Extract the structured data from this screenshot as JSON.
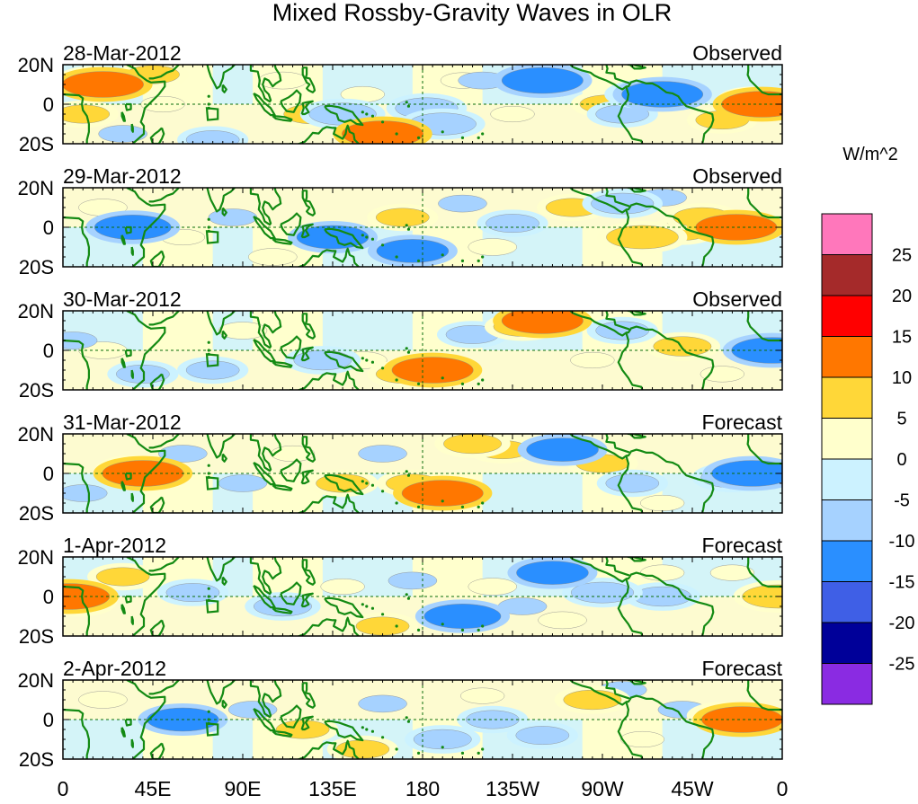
{
  "chart_data": {
    "type": "heatmap",
    "title": "Mixed Rossby-Gravity Waves in OLR",
    "units_label": "W/m^2",
    "x_ticks": [
      "0",
      "45E",
      "90E",
      "135E",
      "180",
      "135W",
      "90W",
      "45W",
      "0"
    ],
    "x_tick_lons": [
      0,
      45,
      90,
      135,
      180,
      225,
      270,
      315,
      360
    ],
    "y_ticks": [
      "20N",
      "0",
      "20S"
    ],
    "y_tick_lats": [
      20,
      0,
      -20
    ],
    "xlim": [
      0,
      360
    ],
    "ylim": [
      -20,
      20
    ],
    "colorbar": {
      "labels": [
        "25",
        "20",
        "15",
        "10",
        "5",
        "0",
        "-5",
        "-10",
        "-15",
        "-20",
        "-25"
      ],
      "levels": [
        25,
        20,
        15,
        10,
        5,
        0,
        -5,
        -10,
        -15,
        -20,
        -25
      ],
      "colors": [
        "#ff77bb",
        "#a52a2a",
        "#ff0000",
        "#ff7700",
        "#ffd738",
        "#ffffcc",
        "#ccf2ff",
        "#a6d2ff",
        "#2a8fff",
        "#3f5fe6",
        "#000099",
        "#8a2be2"
      ]
    },
    "panels": [
      {
        "date": "28-Mar-2012",
        "status": "Observed",
        "anomalies": [
          {
            "lon": 20,
            "lat": 10,
            "value": 12
          },
          {
            "lon": 15,
            "lat": 12,
            "value": 7
          },
          {
            "lon": 45,
            "lat": 15,
            "value": 6
          },
          {
            "lon": 10,
            "lat": -5,
            "value": 6
          },
          {
            "lon": 50,
            "lat": 0,
            "value": 4
          },
          {
            "lon": 110,
            "lat": 12,
            "value": 5
          },
          {
            "lon": 125,
            "lat": -5,
            "value": 7
          },
          {
            "lon": 150,
            "lat": 5,
            "value": 4
          },
          {
            "lon": 160,
            "lat": -15,
            "value": 12
          },
          {
            "lon": 200,
            "lat": 12,
            "value": 4
          },
          {
            "lon": 245,
            "lat": 8,
            "value": 5
          },
          {
            "lon": 225,
            "lat": -5,
            "value": 4
          },
          {
            "lon": 272,
            "lat": 0,
            "value": 6
          },
          {
            "lon": 330,
            "lat": -8,
            "value": 6
          },
          {
            "lon": 350,
            "lat": 0,
            "value": 12
          },
          {
            "lon": 345,
            "lat": 2,
            "value": 6
          },
          {
            "lon": 240,
            "lat": 12,
            "value": -12
          },
          {
            "lon": 182,
            "lat": -2,
            "value": -8
          },
          {
            "lon": 190,
            "lat": -10,
            "value": -9
          },
          {
            "lon": 140,
            "lat": -5,
            "value": -9
          },
          {
            "lon": 75,
            "lat": -18,
            "value": -6
          },
          {
            "lon": 290,
            "lat": 5,
            "value": -7
          },
          {
            "lon": 300,
            "lat": 5,
            "value": -12
          },
          {
            "lon": 280,
            "lat": -5,
            "value": -6
          },
          {
            "lon": 30,
            "lat": -15,
            "value": -5
          },
          {
            "lon": 210,
            "lat": 12,
            "value": -5
          }
        ]
      },
      {
        "date": "29-Mar-2012",
        "status": "Observed",
        "anomalies": [
          {
            "lon": 337,
            "lat": 0,
            "value": 12
          },
          {
            "lon": 320,
            "lat": 5,
            "value": 7
          },
          {
            "lon": 310,
            "lat": -2,
            "value": 6
          },
          {
            "lon": 290,
            "lat": -5,
            "value": 10
          },
          {
            "lon": 255,
            "lat": 10,
            "value": 6
          },
          {
            "lon": 215,
            "lat": -10,
            "value": 5
          },
          {
            "lon": 170,
            "lat": 5,
            "value": 6
          },
          {
            "lon": 105,
            "lat": -15,
            "value": 5
          },
          {
            "lon": 20,
            "lat": 10,
            "value": 5
          },
          {
            "lon": 60,
            "lat": -5,
            "value": 4
          },
          {
            "lon": 135,
            "lat": -5,
            "value": -10
          },
          {
            "lon": 35,
            "lat": 0,
            "value": -11
          },
          {
            "lon": 175,
            "lat": -12,
            "value": -10
          },
          {
            "lon": 280,
            "lat": 12,
            "value": -8
          },
          {
            "lon": 200,
            "lat": 12,
            "value": -5
          },
          {
            "lon": 225,
            "lat": 2,
            "value": -6
          },
          {
            "lon": 85,
            "lat": 5,
            "value": -5
          },
          {
            "lon": 300,
            "lat": 15,
            "value": -5
          }
        ]
      },
      {
        "date": "30-Mar-2012",
        "status": "Observed",
        "anomalies": [
          {
            "lon": 240,
            "lat": 15,
            "value": 12
          },
          {
            "lon": 230,
            "lat": 12,
            "value": 7
          },
          {
            "lon": 185,
            "lat": -10,
            "value": 12
          },
          {
            "lon": 170,
            "lat": -12,
            "value": 6
          },
          {
            "lon": 150,
            "lat": -5,
            "value": 5
          },
          {
            "lon": 20,
            "lat": 0,
            "value": 5
          },
          {
            "lon": 90,
            "lat": 10,
            "value": 5
          },
          {
            "lon": 310,
            "lat": 2,
            "value": 7
          },
          {
            "lon": 330,
            "lat": -12,
            "value": 4
          },
          {
            "lon": 265,
            "lat": -5,
            "value": 4
          },
          {
            "lon": 355,
            "lat": 0,
            "value": -12
          },
          {
            "lon": 130,
            "lat": -5,
            "value": -7
          },
          {
            "lon": 75,
            "lat": -10,
            "value": -6
          },
          {
            "lon": 205,
            "lat": 8,
            "value": -6
          },
          {
            "lon": 280,
            "lat": 10,
            "value": -6
          },
          {
            "lon": 40,
            "lat": -12,
            "value": -6
          },
          {
            "lon": 5,
            "lat": 5,
            "value": -5
          }
        ]
      },
      {
        "date": "31-Mar-2012",
        "status": "Forecast",
        "anomalies": [
          {
            "lon": 40,
            "lat": 0,
            "value": 12
          },
          {
            "lon": 35,
            "lat": 2,
            "value": 7
          },
          {
            "lon": 190,
            "lat": -10,
            "value": 12
          },
          {
            "lon": 175,
            "lat": -5,
            "value": 6
          },
          {
            "lon": 205,
            "lat": 15,
            "value": 7
          },
          {
            "lon": 220,
            "lat": 12,
            "value": 6
          },
          {
            "lon": 140,
            "lat": -5,
            "value": 6
          },
          {
            "lon": 115,
            "lat": 10,
            "value": 4
          },
          {
            "lon": 270,
            "lat": 5,
            "value": 6
          },
          {
            "lon": 300,
            "lat": -15,
            "value": 4
          },
          {
            "lon": 345,
            "lat": 0,
            "value": -12
          },
          {
            "lon": 335,
            "lat": -2,
            "value": -8
          },
          {
            "lon": 250,
            "lat": 12,
            "value": -10
          },
          {
            "lon": 90,
            "lat": -5,
            "value": -5
          },
          {
            "lon": 160,
            "lat": 10,
            "value": -5
          },
          {
            "lon": 60,
            "lat": 10,
            "value": -5
          },
          {
            "lon": 10,
            "lat": -10,
            "value": -5
          },
          {
            "lon": 285,
            "lat": -5,
            "value": -6
          }
        ]
      },
      {
        "date": "1-Apr-2012",
        "status": "Forecast",
        "anomalies": [
          {
            "lon": 3,
            "lat": 0,
            "value": 12
          },
          {
            "lon": 8,
            "lat": -3,
            "value": 7
          },
          {
            "lon": 30,
            "lat": 10,
            "value": 6
          },
          {
            "lon": 160,
            "lat": -15,
            "value": 6
          },
          {
            "lon": 140,
            "lat": 5,
            "value": 4
          },
          {
            "lon": 215,
            "lat": 5,
            "value": 5
          },
          {
            "lon": 250,
            "lat": -12,
            "value": 5
          },
          {
            "lon": 300,
            "lat": 12,
            "value": 4
          },
          {
            "lon": 358,
            "lat": 0,
            "value": 10
          },
          {
            "lon": 335,
            "lat": 12,
            "value": 4
          },
          {
            "lon": 245,
            "lat": 12,
            "value": -10
          },
          {
            "lon": 200,
            "lat": -10,
            "value": -11
          },
          {
            "lon": 270,
            "lat": 2,
            "value": -8
          },
          {
            "lon": 300,
            "lat": 0,
            "value": -7
          },
          {
            "lon": 110,
            "lat": -5,
            "value": -7
          },
          {
            "lon": 65,
            "lat": 2,
            "value": -6
          },
          {
            "lon": 175,
            "lat": 8,
            "value": -5
          },
          {
            "lon": 230,
            "lat": -5,
            "value": -5
          }
        ]
      },
      {
        "date": "2-Apr-2012",
        "status": "Forecast",
        "anomalies": [
          {
            "lon": 340,
            "lat": 0,
            "value": 12
          },
          {
            "lon": 330,
            "lat": 2,
            "value": 6
          },
          {
            "lon": 265,
            "lat": 10,
            "value": 7
          },
          {
            "lon": 150,
            "lat": -15,
            "value": 6
          },
          {
            "lon": 120,
            "lat": -5,
            "value": 6
          },
          {
            "lon": 20,
            "lat": 10,
            "value": 5
          },
          {
            "lon": 210,
            "lat": 12,
            "value": 4
          },
          {
            "lon": 290,
            "lat": -10,
            "value": 4
          },
          {
            "lon": 60,
            "lat": 0,
            "value": -10
          },
          {
            "lon": 190,
            "lat": -10,
            "value": -7
          },
          {
            "lon": 215,
            "lat": 0,
            "value": -6
          },
          {
            "lon": 240,
            "lat": -8,
            "value": -6
          },
          {
            "lon": 280,
            "lat": 15,
            "value": -5
          },
          {
            "lon": 160,
            "lat": 8,
            "value": -5
          },
          {
            "lon": 95,
            "lat": 5,
            "value": -5
          },
          {
            "lon": 310,
            "lat": 5,
            "value": -5
          }
        ]
      }
    ]
  }
}
